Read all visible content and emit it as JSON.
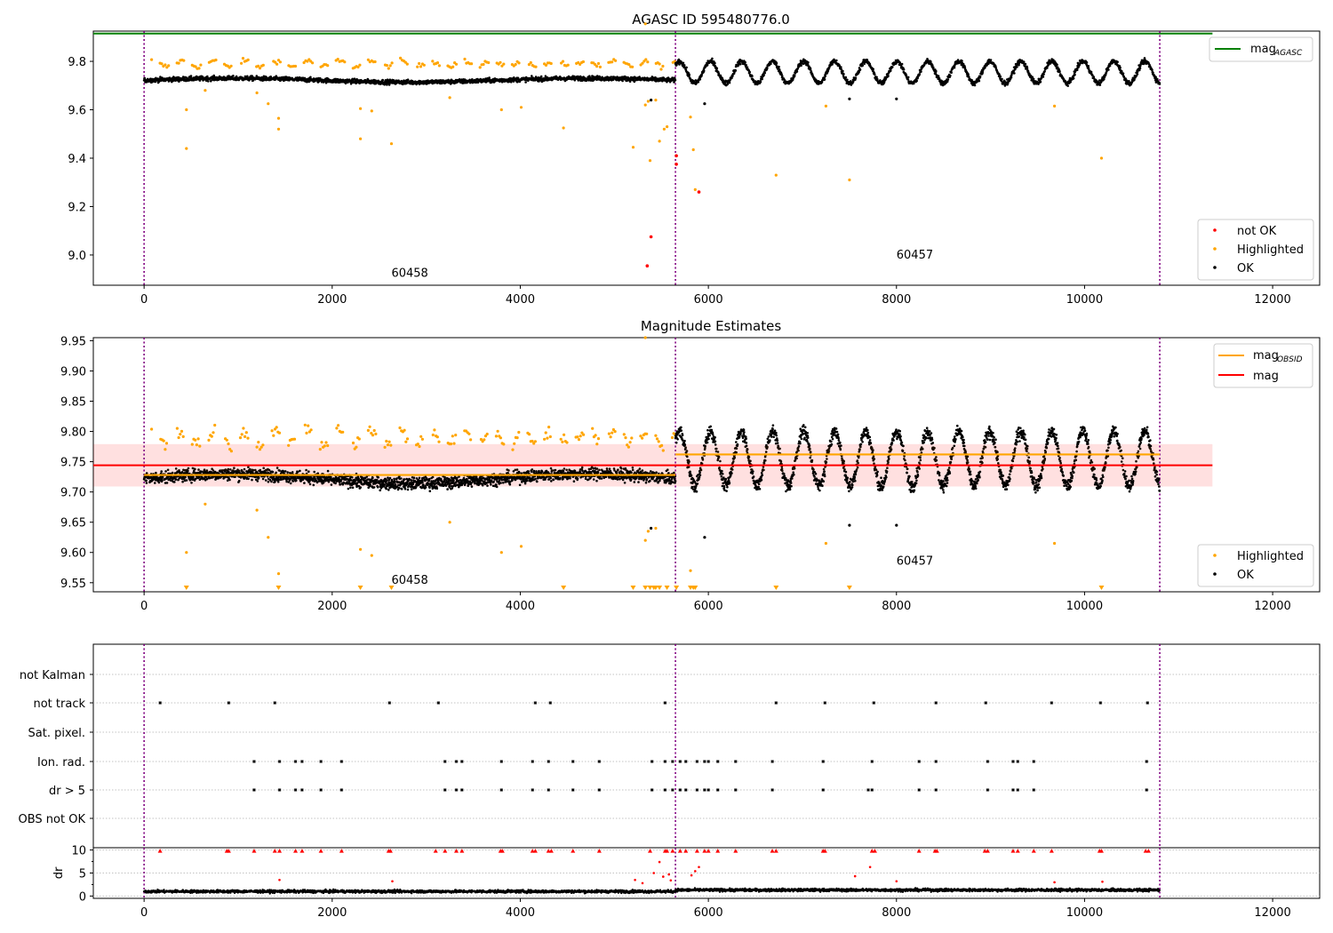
{
  "chart_data": [
    {
      "type": "scatter",
      "title": "AGASC ID 595480776.0",
      "xlim": [
        -540,
        12500
      ],
      "ylim": [
        8.875,
        9.925
      ],
      "xticks": [
        0,
        2000,
        4000,
        6000,
        8000,
        10000,
        12000
      ],
      "xtick_labels": [
        "0",
        "2000",
        "4000",
        "6000",
        "8000",
        "10000",
        "12000"
      ],
      "yticks": [
        9.0,
        9.2,
        9.4,
        9.6,
        9.8
      ],
      "ytick_labels": [
        "9.0",
        "9.2",
        "9.4",
        "9.6",
        "9.8"
      ],
      "obs_boundaries": [
        0,
        5650,
        10800
      ],
      "obs_labels": [
        {
          "text": "60458",
          "x": 2630,
          "y": 8.91
        },
        {
          "text": "60457",
          "x": 8000,
          "y": 8.985
        }
      ],
      "mag_agasc": 9.915,
      "mag_agasc_x": [
        -540,
        11360
      ],
      "series": [
        {
          "name": "OK",
          "color": "#000000",
          "description": "dense band of points",
          "segments": [
            {
              "x": [
                0,
                5650
              ],
              "center": 9.722,
              "amplitude": 0.008,
              "spread": 0.018
            },
            {
              "x": [
                5650,
                10800
              ],
              "center": 9.755,
              "amplitude": 0.045,
              "spread": 0.02,
              "period": 330
            }
          ],
          "outliers": [
            [
              5390,
              9.64
            ],
            [
              5960,
              9.625
            ],
            [
              7500,
              9.645
            ],
            [
              8000,
              9.645
            ]
          ]
        },
        {
          "name": "Highlighted",
          "color": "#ffa500",
          "points": [
            [
              450,
              9.44
            ],
            [
              450,
              9.6
            ],
            [
              650,
              9.68
            ],
            [
              1200,
              9.67
            ],
            [
              1320,
              9.625
            ],
            [
              1430,
              9.565
            ],
            [
              1430,
              9.52
            ],
            [
              2300,
              9.605
            ],
            [
              2300,
              9.48
            ],
            [
              2420,
              9.595
            ],
            [
              2630,
              9.46
            ],
            [
              3250,
              9.65
            ],
            [
              3800,
              9.6
            ],
            [
              4010,
              9.61
            ],
            [
              4460,
              9.525
            ],
            [
              5200,
              9.445
            ],
            [
              5330,
              9.62
            ],
            [
              5330,
              9.955
            ],
            [
              5360,
              9.635
            ],
            [
              5380,
              9.39
            ],
            [
              5440,
              9.64
            ],
            [
              5480,
              9.47
            ],
            [
              5530,
              9.52
            ],
            [
              5560,
              9.53
            ],
            [
              5660,
              9.41
            ],
            [
              5810,
              9.57
            ],
            [
              5840,
              9.435
            ],
            [
              5860,
              9.27
            ],
            [
              6720,
              9.33
            ],
            [
              7250,
              9.615
            ],
            [
              7500,
              9.31
            ],
            [
              9680,
              9.615
            ],
            [
              10180,
              9.4
            ]
          ],
          "upper_band": {
            "center": 9.79,
            "spread": 0.02
          }
        },
        {
          "name": "not OK",
          "color": "#ff0000",
          "points": [
            [
              5390,
              9.075
            ],
            [
              5350,
              8.955
            ],
            [
              5660,
              9.375
            ],
            [
              5660,
              9.41
            ],
            [
              5900,
              9.26
            ]
          ]
        }
      ],
      "legend": [
        "not OK",
        "Highlighted",
        "OK"
      ],
      "legend_top": "mag",
      "legend_top_sub": "AGASC",
      "legend_placement": "lower-right"
    },
    {
      "type": "scatter",
      "title": "Magnitude Estimates",
      "xlim": [
        -540,
        12500
      ],
      "ylim": [
        9.535,
        9.955
      ],
      "xticks": [
        0,
        2000,
        4000,
        6000,
        8000,
        10000,
        12000
      ],
      "xtick_labels": [
        "0",
        "2000",
        "4000",
        "6000",
        "8000",
        "10000",
        "12000"
      ],
      "yticks": [
        9.55,
        9.6,
        9.65,
        9.7,
        9.75,
        9.8,
        9.85,
        9.9,
        9.95
      ],
      "ytick_labels": [
        "9.55",
        "9.60",
        "9.65",
        "9.70",
        "9.75",
        "9.80",
        "9.85",
        "9.90",
        "9.95"
      ],
      "obs_boundaries": [
        0,
        5650,
        10800
      ],
      "obs_labels": [
        {
          "text": "60458",
          "x": 2630,
          "y": 9.548
        },
        {
          "text": "60457",
          "x": 8000,
          "y": 9.58
        }
      ],
      "mag": 9.744,
      "mag_band": [
        9.709,
        9.779
      ],
      "mag_band_x": [
        -540,
        11360
      ],
      "mag_obsid": [
        {
          "x": [
            0,
            5650
          ],
          "value": 9.728
        },
        {
          "x": [
            5650,
            10800
          ],
          "value": 9.762
        }
      ],
      "upper_limit_markers_x": [
        450,
        1430,
        2300,
        2630,
        4460,
        5200,
        5330,
        5380,
        5420,
        5440,
        5480,
        5560,
        5660,
        5810,
        5840,
        5860,
        6720,
        7500,
        10180
      ],
      "series": [
        {
          "name": "Highlighted",
          "color": "#ffa500"
        },
        {
          "name": "OK",
          "color": "#000000"
        }
      ],
      "legend_top": [
        "mag",
        "mag"
      ],
      "legend_top_sub": "OBSID",
      "legend_placement": "top-right"
    },
    {
      "type": "scatter",
      "title": "",
      "xlim": [
        -540,
        12500
      ],
      "categories": [
        "not Kalman",
        "not track",
        "Sat. pixel.",
        "Ion. rad.",
        "dr > 5",
        "OBS not OK"
      ],
      "events": {
        "not track": [
          170,
          900,
          1390,
          2610,
          3130,
          4160,
          4320,
          5540,
          6720,
          7240,
          7760,
          8420,
          8950,
          9650,
          10170,
          10670
        ],
        "Ion. rad.": [
          1170,
          1440,
          1610,
          1680,
          1880,
          2100,
          3200,
          3320,
          3380,
          3800,
          4130,
          4300,
          4560,
          4840,
          5400,
          5540,
          5620,
          5700,
          5760,
          5880,
          5960,
          6000,
          6100,
          6290,
          6680,
          7220,
          7740,
          8240,
          8420,
          8970,
          9240,
          9290,
          9460,
          10660
        ],
        "dr > 5": [
          1170,
          1440,
          1610,
          1680,
          1880,
          2100,
          3200,
          3320,
          3380,
          3800,
          4130,
          4300,
          4560,
          4840,
          5400,
          5540,
          5620,
          5700,
          5760,
          5880,
          5960,
          6000,
          6100,
          6290,
          6680,
          7220,
          7700,
          7740,
          8240,
          8420,
          8970,
          9240,
          9290,
          9460,
          10660
        ]
      },
      "obs_boundaries": [
        0,
        5650,
        10800
      ]
    },
    {
      "type": "scatter",
      "title": "",
      "ylabel": "dr",
      "xlim": [
        -540,
        12500
      ],
      "ylim": [
        -0.5,
        10.5
      ],
      "yticks": [
        0,
        5,
        10
      ],
      "ytick_labels": [
        "0",
        "5",
        "10"
      ],
      "xticks": [
        0,
        2000,
        4000,
        6000,
        8000,
        10000,
        12000
      ],
      "xtick_labels": [
        "0",
        "2000",
        "4000",
        "6000",
        "8000",
        "10000",
        "12000"
      ],
      "obs_boundaries": [
        0,
        5650,
        10800
      ],
      "clipped_red_markers_x": [
        170,
        880,
        900,
        1170,
        1390,
        1440,
        1610,
        1680,
        1880,
        2100,
        2600,
        2620,
        3100,
        3200,
        3320,
        3380,
        3790,
        3810,
        4130,
        4160,
        4300,
        4330,
        4560,
        4840,
        5380,
        5540,
        5560,
        5620,
        5700,
        5760,
        5880,
        5960,
        6000,
        6100,
        6290,
        6680,
        6720,
        7220,
        7240,
        7740,
        7770,
        8240,
        8410,
        8430,
        8940,
        8970,
        9240,
        9290,
        9460,
        9650,
        10160,
        10180,
        10650,
        10680
      ],
      "red_points": [
        [
          1440,
          3.5
        ],
        [
          2640,
          3.2
        ],
        [
          5220,
          3.5
        ],
        [
          5300,
          2.8
        ],
        [
          5420,
          5.0
        ],
        [
          5480,
          7.4
        ],
        [
          5520,
          4.2
        ],
        [
          5580,
          4.7
        ],
        [
          5600,
          3.4
        ],
        [
          5820,
          4.5
        ],
        [
          5860,
          5.4
        ],
        [
          5900,
          6.3
        ],
        [
          7560,
          4.3
        ],
        [
          7720,
          6.3
        ],
        [
          8000,
          3.2
        ],
        [
          9680,
          3.0
        ],
        [
          10190,
          3.1
        ]
      ],
      "ok_band": {
        "center": 1.0,
        "spread": 0.5
      }
    }
  ]
}
